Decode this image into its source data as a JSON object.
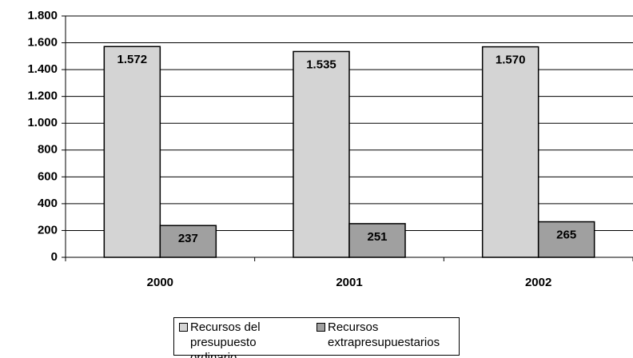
{
  "chart_data": {
    "type": "bar",
    "categories": [
      "2000",
      "2001",
      "2002"
    ],
    "series": [
      {
        "name": "Recursos del presupuesto ordinario",
        "color": "#d4d4d4",
        "values": [
          1572,
          1535,
          1570
        ],
        "value_labels": [
          "1.572",
          "1.535",
          "1.570"
        ]
      },
      {
        "name": "Recursos extrapresupuestarios",
        "color": "#a0a0a0",
        "values": [
          237,
          251,
          265
        ]
      }
    ],
    "ylim": [
      0,
      1800
    ],
    "yticks": [
      0,
      200,
      400,
      600,
      800,
      {
        "value": 1000,
        "label": "1.000"
      },
      {
        "value": 1200,
        "label": "1.200"
      },
      {
        "value": 1400,
        "label": "1.400"
      },
      {
        "value": 1600,
        "label": "1.600"
      },
      {
        "value": 1800,
        "label": "1.800"
      }
    ],
    "grid": true,
    "legend": "bottom"
  }
}
